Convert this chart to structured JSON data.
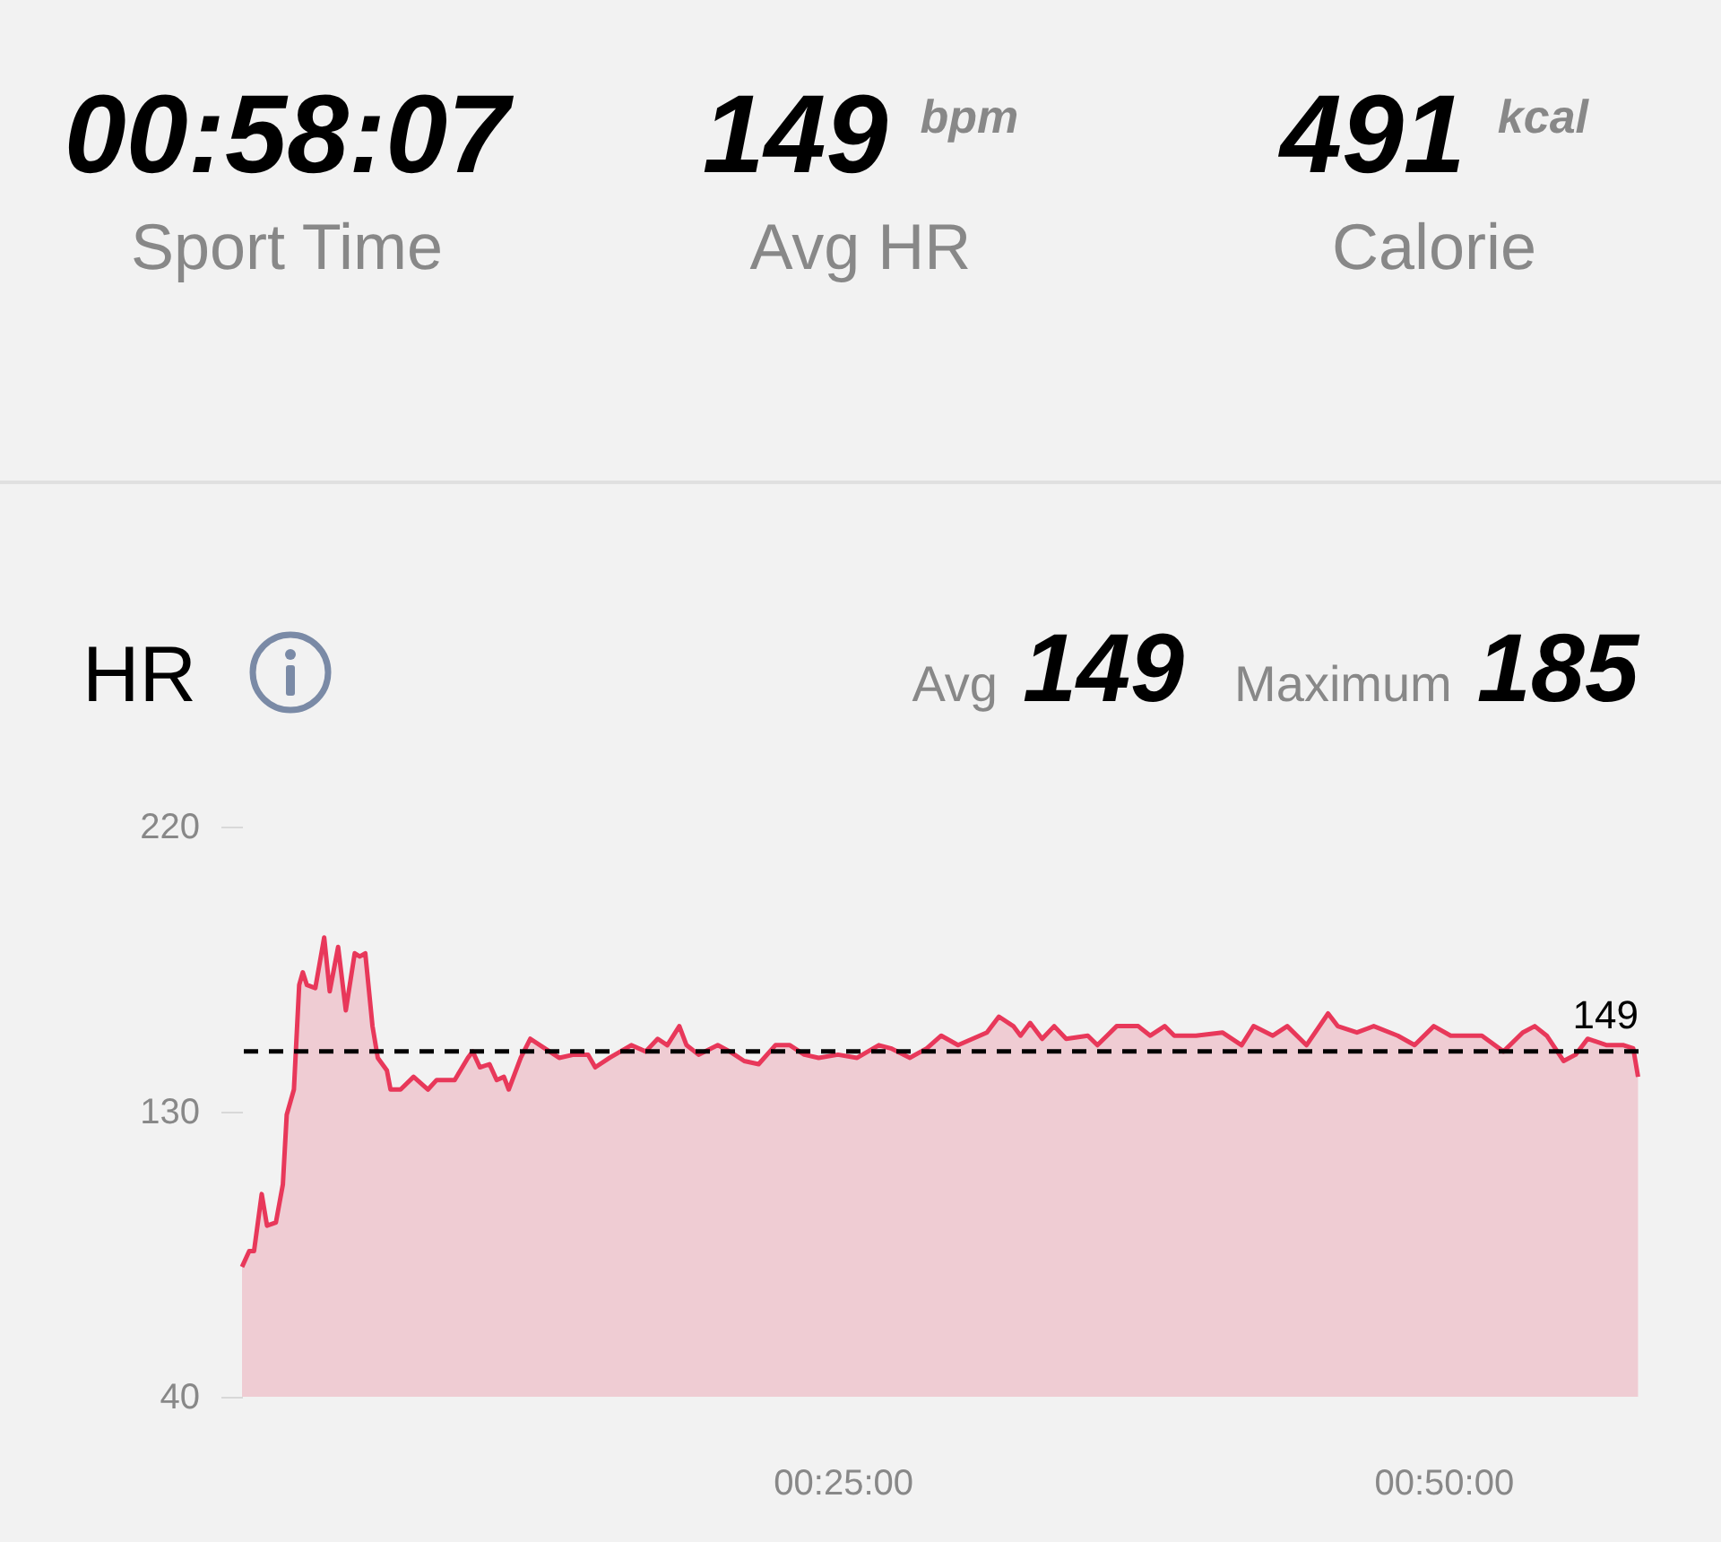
{
  "chart_data": {
    "type": "area",
    "title": "HR",
    "annotations": [
      "00:58:07",
      "Sport Time",
      "149",
      "bpm",
      "Avg HR",
      "491",
      "kcal",
      "Calorie",
      "Avg",
      "149",
      "Maximum",
      "185"
    ],
    "x": [
      0,
      0.3,
      0.5,
      0.82,
      1.04,
      1.41,
      1.7,
      1.86,
      2.16,
      2.38,
      2.53,
      2.7,
      3.05,
      3.42,
      3.65,
      4.0,
      4.32,
      4.69,
      4.9,
      5.13,
      5.43,
      5.65,
      6.03,
      6.18,
      6.6,
      7.14,
      7.74,
      8.1,
      8.6,
      8.85,
      9.4,
      9.6,
      9.9,
      10.3,
      10.6,
      10.9,
      11.1,
      11.6,
      12.0,
      12.4,
      12.6,
      13.2,
      13.8,
      14.4,
      14.7,
      15.3,
      16.2,
      16.8,
      17.3,
      17.7,
      18.2,
      18.5,
      19.0,
      19.8,
      20.3,
      20.9,
      21.5,
      22.2,
      22.8,
      23.4,
      24.0,
      24.8,
      25.6,
      26.5,
      27.0,
      27.8,
      28.5,
      29.1,
      29.8,
      31.0,
      31.5,
      32.1,
      32.4,
      32.8,
      33.3,
      33.8,
      34.3,
      35.2,
      35.6,
      36.0,
      36.4,
      37.3,
      37.8,
      38.4,
      38.8,
      39.7,
      40.8,
      41.6,
      42.1,
      42.9,
      43.5,
      44.3,
      45.2,
      45.6,
      46.4,
      47.1,
      48.1,
      48.8,
      49.6,
      50.3,
      51.6,
      52.5,
      53.3,
      53.8,
      54.3,
      55.0,
      55.5,
      56.0,
      56.8,
      57.5,
      57.9,
      58.1
    ],
    "series": [
      {
        "color": "#e8385a",
        "values": [
          81,
          86,
          86,
          104,
          94,
          95,
          107,
          129,
          137,
          170,
          174,
          170,
          169,
          185,
          168,
          182,
          162,
          180,
          179,
          180,
          157,
          147,
          143,
          137,
          137,
          141,
          137,
          140,
          140,
          140,
          147,
          149,
          144,
          145,
          140,
          141,
          137,
          147,
          153,
          151,
          150,
          147,
          148,
          148,
          144,
          147,
          151,
          149,
          153,
          151,
          157,
          151,
          148,
          151,
          149,
          146,
          145,
          151,
          151,
          148,
          147,
          148,
          147,
          151,
          150,
          147,
          150,
          154,
          151,
          155,
          160,
          157,
          154,
          158,
          153,
          157,
          153,
          154,
          151,
          154,
          157,
          157,
          154,
          157,
          154,
          154,
          155,
          151,
          157,
          154,
          157,
          151,
          161,
          157,
          155,
          157,
          154,
          151,
          157,
          154,
          154,
          149,
          155,
          157,
          154,
          146,
          148,
          153,
          151,
          151,
          150,
          141
        ]
      }
    ],
    "xlim": [
      0,
      58.12
    ],
    "xticks": [
      {
        "value": 25,
        "label": "00:25:00"
      },
      {
        "value": 50,
        "label": "00:50:00"
      }
    ],
    "ylim": [
      40,
      220
    ],
    "yticks": [
      40,
      130,
      220
    ],
    "ref_lines": [
      {
        "axis": "y",
        "value": 149,
        "label": "149",
        "color": "#000000",
        "line_style": "dashed"
      }
    ]
  }
}
